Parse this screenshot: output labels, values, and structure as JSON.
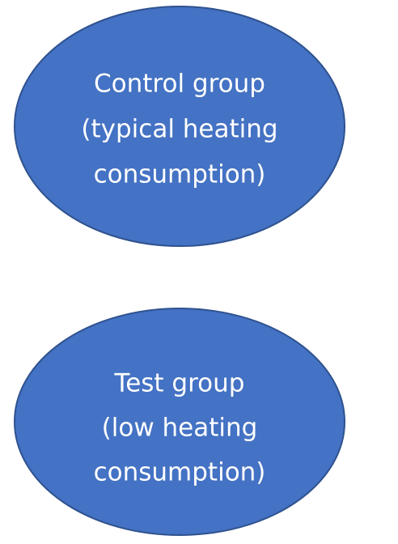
{
  "nodes": [
    {
      "lines": [
        "Control group",
        "(typical heating",
        "consumption)"
      ]
    },
    {
      "lines": [
        "Test group",
        "(low heating",
        "consumption)"
      ]
    }
  ]
}
